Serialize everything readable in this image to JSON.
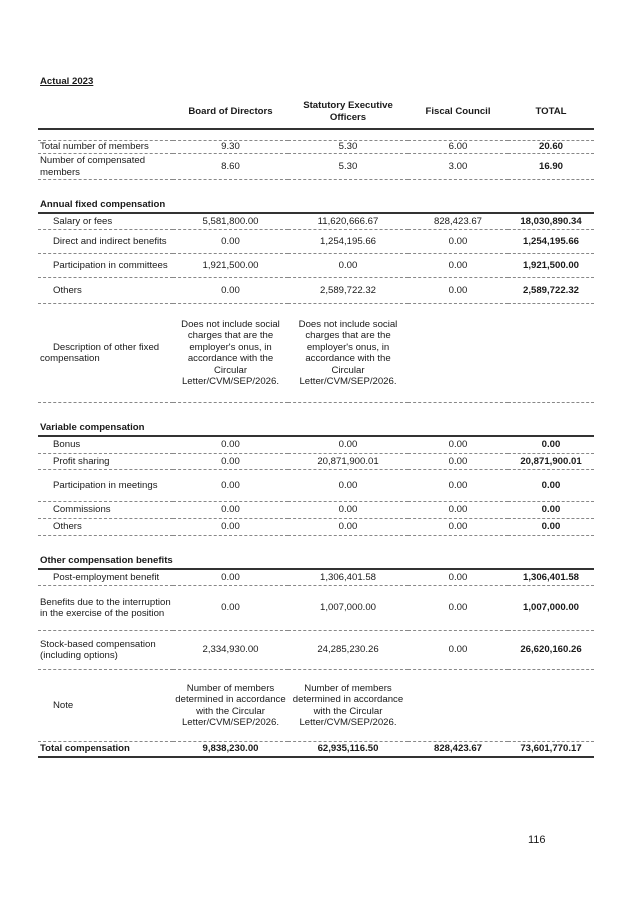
{
  "title": "Actual 2023",
  "columns": [
    "",
    "Board of Directors",
    "Statutory Executive Officers",
    "Fiscal Council",
    "TOTAL"
  ],
  "members": [
    {
      "label": "Total number of members",
      "values": [
        "9.30",
        "5.30",
        "6.00",
        "20.60"
      ]
    },
    {
      "label": "Number of compensated members",
      "values": [
        "8.60",
        "5.30",
        "3.00",
        "16.90"
      ]
    }
  ],
  "fixed": {
    "title": "Annual fixed compensation",
    "rows": [
      {
        "label": "Salary or fees",
        "values": [
          "5,581,800.00",
          "11,620,666.67",
          "828,423.67",
          "18,030,890.34"
        ]
      },
      {
        "label": "Direct and indirect benefits",
        "values": [
          "0.00",
          "1,254,195.66",
          "0.00",
          "1,254,195.66"
        ]
      },
      {
        "label": "Participation in committees",
        "values": [
          "1,921,500.00",
          "0.00",
          "0.00",
          "1,921,500.00"
        ]
      },
      {
        "label": "Others",
        "values": [
          "0.00",
          "2,589,722.32",
          "0.00",
          "2,589,722.32"
        ]
      }
    ],
    "description": {
      "label": "Description of other fixed compensation",
      "values": [
        "Does not include social charges that are the employer's onus, in accordance with the Circular Letter/CVM/SEP/2026.",
        "Does not include social charges that are the employer's onus, in accordance with the Circular Letter/CVM/SEP/2026.",
        "",
        ""
      ]
    }
  },
  "variable": {
    "title": "Variable compensation",
    "rows": [
      {
        "label": "Bonus",
        "values": [
          "0.00",
          "0.00",
          "0.00",
          "0.00"
        ]
      },
      {
        "label": "Profit sharing",
        "values": [
          "0.00",
          "20,871,900.01",
          "0.00",
          "20,871,900.01"
        ]
      },
      {
        "label": "Participation in meetings",
        "values": [
          "0.00",
          "0.00",
          "0.00",
          "0.00"
        ]
      },
      {
        "label": "Commissions",
        "values": [
          "0.00",
          "0.00",
          "0.00",
          "0.00"
        ]
      },
      {
        "label": "Others",
        "values": [
          "0.00",
          "0.00",
          "0.00",
          "0.00"
        ]
      }
    ]
  },
  "other": {
    "title": "Other compensation benefits",
    "rows": [
      {
        "label": "Post-employment benefit",
        "values": [
          "0.00",
          "1,306,401.58",
          "0.00",
          "1,306,401.58"
        ]
      },
      {
        "label": "Benefits due to the interruption in the exercise of the position",
        "values": [
          "0.00",
          "1,007,000.00",
          "0.00",
          "1,007,000.00"
        ]
      },
      {
        "label": "Stock-based compensation (including options)",
        "values": [
          "2,334,930.00",
          "24,285,230.26",
          "0.00",
          "26,620,160.26"
        ]
      }
    ],
    "note": {
      "label": "Note",
      "values": [
        "Number of members determined in accordance with the Circular Letter/CVM/SEP/2026.",
        "Number of members determined in accordance with the Circular Letter/CVM/SEP/2026.",
        "",
        ""
      ]
    }
  },
  "total": {
    "label": "Total compensation",
    "values": [
      "9,838,230.00",
      "62,935,116.50",
      "828,423.67",
      "73,601,770.17"
    ]
  },
  "page_number": "116"
}
